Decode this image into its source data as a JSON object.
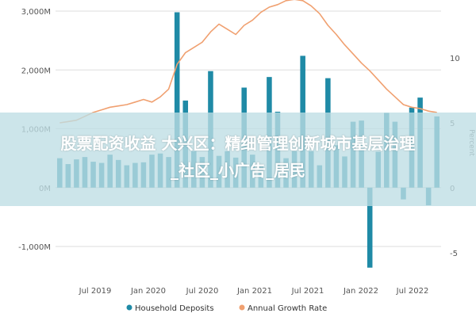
{
  "overlay": {
    "line1": "股票配资收益 大兴区：精细管理创新城市基层治理",
    "line2": "_社区_小广告_居民"
  },
  "colors": {
    "bar": "#1f8aa6",
    "line": "#f0a070",
    "grid": "#dddddd",
    "zero": "#cfcfcf"
  },
  "chart_data": {
    "type": "bar+line",
    "x_labels": [
      "Jul 2019",
      "Jan 2020",
      "Jul 2020",
      "Jan 2021",
      "Jul 2021",
      "Jan 2022",
      "Jul 2022"
    ],
    "y_left": {
      "ticks": [
        "3,000M",
        "2,000M",
        "1,000M",
        "0M",
        "-1,000M"
      ],
      "range": [
        -1500,
        3200
      ]
    },
    "y_right": {
      "label": "Percent",
      "ticks": [
        "10",
        "5",
        "0",
        "-5"
      ],
      "range": [
        -9,
        14
      ]
    },
    "series": [
      {
        "name": "Household Deposits",
        "type": "bar",
        "axis": "left",
        "values": [
          500,
          400,
          480,
          520,
          440,
          420,
          560,
          470,
          380,
          420,
          430,
          560,
          580,
          520,
          2980,
          1480,
          620,
          520,
          1980,
          540,
          620,
          510,
          1700,
          560,
          380,
          1880,
          1290,
          500,
          620,
          2240,
          620,
          380,
          1860,
          720,
          530,
          1120,
          1140,
          -1360,
          610,
          1270,
          1120,
          -200,
          1360,
          1530,
          -300,
          1210
        ]
      },
      {
        "name": "Annual Growth Rate",
        "type": "line",
        "axis": "right",
        "values": [
          5.0,
          5.1,
          5.2,
          5.5,
          5.8,
          6.0,
          6.2,
          6.3,
          6.4,
          6.6,
          6.8,
          6.6,
          7.0,
          7.6,
          9.5,
          10.4,
          10.8,
          11.2,
          12.0,
          12.6,
          12.2,
          11.8,
          12.5,
          12.9,
          13.5,
          13.9,
          14.1,
          14.4,
          14.5,
          14.4,
          14.0,
          13.4,
          12.5,
          11.8,
          11.0,
          10.3,
          9.6,
          9.0,
          8.3,
          7.6,
          7.0,
          6.4,
          6.2,
          6.1,
          5.9,
          5.8
        ]
      }
    ],
    "legend": [
      "Household Deposits",
      "Annual Growth Rate"
    ],
    "legend_position": "bottom"
  }
}
